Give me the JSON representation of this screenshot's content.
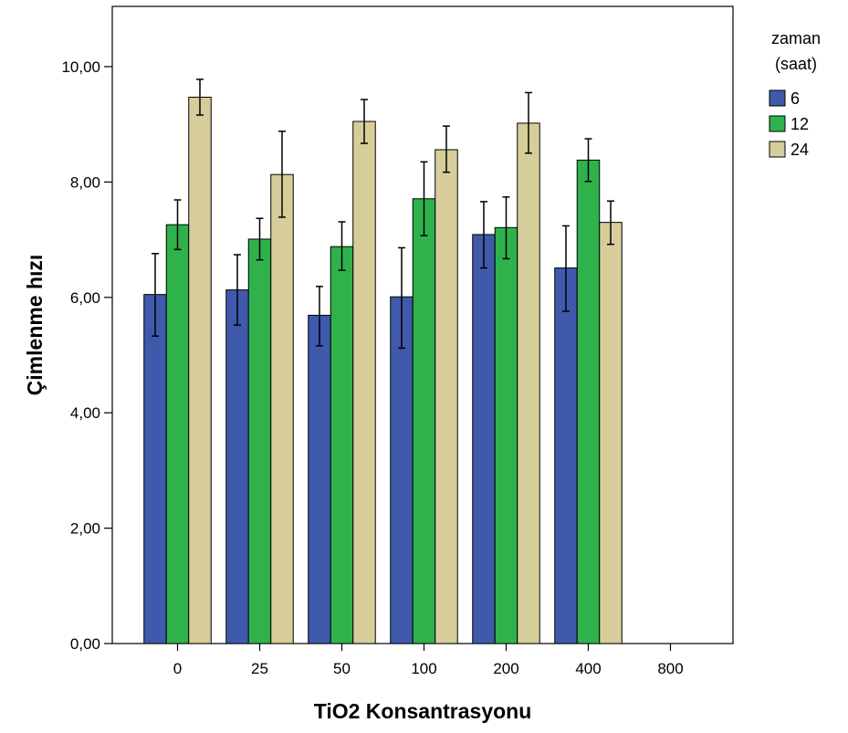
{
  "chart_data": {
    "type": "bar",
    "xlabel": "TiO2 Konsantrasyonu",
    "ylabel": "Çimlenme hızı",
    "categories": [
      "0",
      "25",
      "50",
      "100",
      "200",
      "400",
      "800"
    ],
    "ylim": [
      0,
      11
    ],
    "yticks": [
      0,
      2,
      4,
      6,
      8,
      10
    ],
    "ytick_labels": [
      "0,00",
      "2,00",
      "4,00",
      "6,00",
      "8,00",
      "10,00"
    ],
    "grid": false,
    "legend": {
      "title_lines": [
        "zaman",
        "(saat)"
      ],
      "placement": "right-top"
    },
    "series": [
      {
        "name": "6",
        "color": "#3f59ab",
        "values": [
          6.05,
          6.13,
          5.69,
          6.01,
          7.09,
          6.51,
          0
        ],
        "err_low": [
          5.33,
          5.52,
          5.16,
          5.12,
          6.51,
          5.76,
          0
        ],
        "err_high": [
          6.76,
          6.74,
          6.19,
          6.86,
          7.66,
          7.24,
          0
        ]
      },
      {
        "name": "12",
        "color": "#2fb24c",
        "values": [
          7.26,
          7.01,
          6.88,
          7.71,
          7.21,
          8.38,
          0
        ],
        "err_low": [
          6.83,
          6.65,
          6.47,
          7.07,
          6.67,
          8.01,
          0
        ],
        "err_high": [
          7.69,
          7.37,
          7.31,
          8.35,
          7.74,
          8.75,
          0
        ]
      },
      {
        "name": "24",
        "color": "#d6cd9a",
        "values": [
          9.47,
          8.13,
          9.05,
          8.56,
          9.02,
          7.3,
          0
        ],
        "err_low": [
          9.16,
          7.39,
          8.67,
          8.17,
          8.5,
          6.92,
          0
        ],
        "err_high": [
          9.78,
          8.88,
          9.43,
          8.97,
          9.55,
          7.67,
          0
        ]
      }
    ]
  }
}
